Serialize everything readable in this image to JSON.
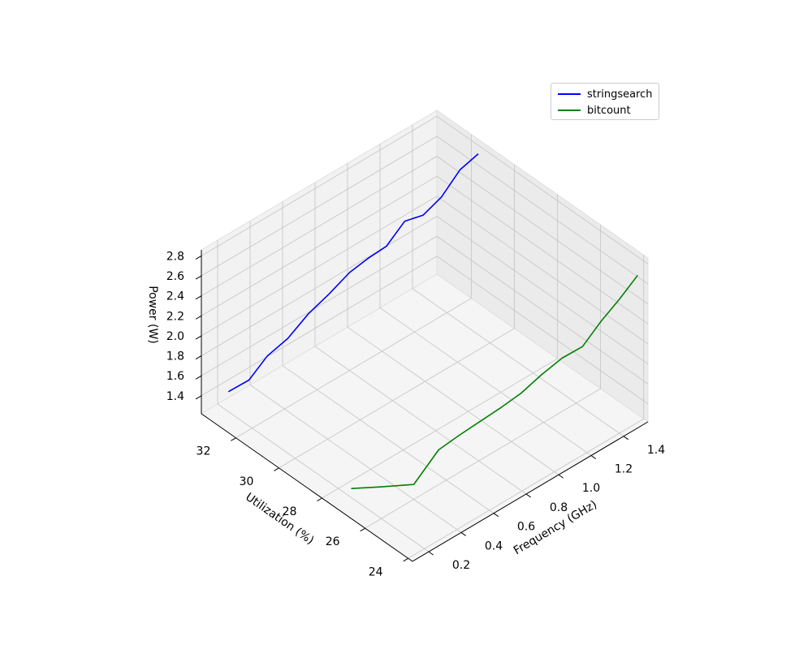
{
  "chart_data": {
    "type": "line",
    "projection": "3d",
    "xlabel": "Frequency (GHz)",
    "ylabel": "Utilization (%)",
    "zlabel": "Power (W)",
    "xlim": [
      0.1,
      1.55
    ],
    "ylim": [
      23.8,
      33.6
    ],
    "zlim": [
      1.22,
      2.86
    ],
    "x_ticks": [
      "0.2",
      "0.4",
      "0.6",
      "0.8",
      "1.0",
      "1.2",
      "1.4"
    ],
    "y_ticks": [
      "24",
      "26",
      "28",
      "30",
      "32"
    ],
    "z_ticks": [
      "1.4",
      "1.6",
      "1.8",
      "2.0",
      "2.2",
      "2.4",
      "2.6",
      "2.8"
    ],
    "legend_position": "top-right",
    "series": [
      {
        "name": "stringsearch",
        "color": "#0000ff",
        "x": [
          0.2,
          0.3,
          0.4,
          0.5,
          0.6,
          0.7,
          0.8,
          0.9,
          1.0,
          1.1,
          1.2,
          1.3,
          1.4,
          1.5
        ],
        "y": [
          33.1,
          32.9,
          32.8,
          32.6,
          32.4,
          32.2,
          32.0,
          31.9,
          31.8,
          31.7,
          31.6,
          31.5,
          31.4,
          31.3
        ],
        "z": [
          1.42,
          1.47,
          1.63,
          1.74,
          1.92,
          2.05,
          2.2,
          2.26,
          2.3,
          2.47,
          2.45,
          2.55,
          2.74,
          2.82
        ]
      },
      {
        "name": "bitcount",
        "color": "#008000",
        "x": [
          0.2,
          0.3,
          0.4,
          0.5,
          0.6,
          0.7,
          0.8,
          0.9,
          1.0,
          1.1,
          1.2,
          1.3,
          1.4,
          1.5
        ],
        "y": [
          27.4,
          26.8,
          26.0,
          25.6,
          25.4,
          25.2,
          25.0,
          24.8,
          24.6,
          24.4,
          24.2,
          24.1,
          24.0,
          23.9
        ],
        "z": [
          1.31,
          1.32,
          1.37,
          1.68,
          1.76,
          1.83,
          1.9,
          1.98,
          2.1,
          2.2,
          2.25,
          2.42,
          2.56,
          2.72
        ]
      }
    ]
  }
}
